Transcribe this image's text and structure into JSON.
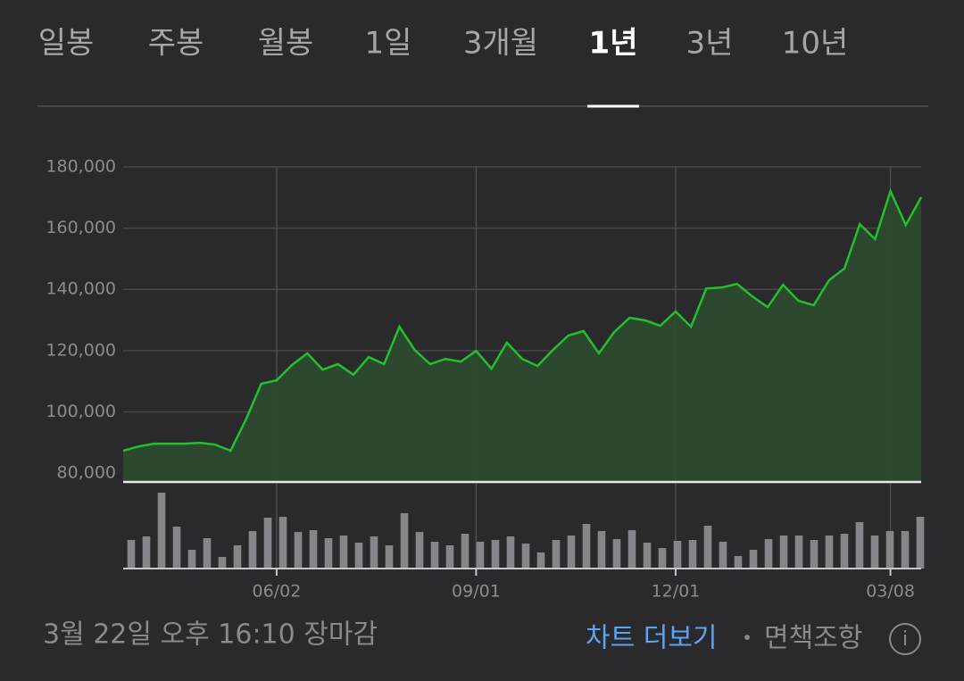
{
  "tabs": [
    "일봉",
    "주봉",
    "월봉",
    "1일",
    "3개월",
    "1년",
    "3년",
    "10년"
  ],
  "active_tab_index": 5,
  "chart_data": [
    {
      "type": "line",
      "color": "#22c02a",
      "area_color": "#2c4a2e",
      "categories": [
        null,
        null,
        null,
        null,
        null,
        null,
        null,
        null,
        null,
        null,
        "06/02",
        null,
        null,
        null,
        null,
        null,
        null,
        null,
        null,
        null,
        null,
        null,
        null,
        "09/01",
        null,
        null,
        null,
        null,
        null,
        null,
        null,
        null,
        null,
        null,
        null,
        null,
        "12/01",
        null,
        null,
        null,
        null,
        null,
        null,
        null,
        null,
        null,
        null,
        null,
        null,
        null,
        "03/08",
        null,
        null
      ],
      "values": [
        87300,
        88700,
        89600,
        89600,
        89600,
        89900,
        89300,
        87300,
        97500,
        109200,
        110300,
        115300,
        119100,
        113800,
        115600,
        112100,
        117900,
        115600,
        127800,
        120200,
        115600,
        117300,
        116400,
        119900,
        114100,
        122600,
        117300,
        115000,
        120200,
        124900,
        126400,
        119100,
        126100,
        130700,
        129900,
        128100,
        132800,
        127800,
        140300,
        140600,
        141800,
        137700,
        134200,
        141500,
        136300,
        134800,
        143000,
        146800,
        161300,
        156400,
        172100,
        161000,
        170100
      ],
      "ylim": [
        77400,
        180000
      ],
      "yticks": [
        {
          "value": 80000,
          "label": "80,000"
        },
        {
          "value": 100000,
          "label": "100,000"
        },
        {
          "value": 120000,
          "label": "120,000"
        },
        {
          "value": 140000,
          "label": "140,000"
        },
        {
          "value": 160000,
          "label": "160,000"
        },
        {
          "value": 180000,
          "label": "180,000"
        }
      ],
      "grid": true
    },
    {
      "type": "bar",
      "color": "#85858c",
      "ylim": [
        0,
        100
      ],
      "values": [
        32,
        36,
        85,
        47,
        21,
        34,
        13,
        26,
        42,
        57,
        58,
        41,
        43,
        34,
        37,
        29,
        36,
        26,
        62,
        41,
        30,
        26,
        39,
        30,
        32,
        36,
        28,
        18,
        32,
        37,
        50,
        42,
        33,
        43,
        29,
        23,
        31,
        32,
        48,
        30,
        14,
        21,
        33,
        37,
        37,
        32,
        37,
        39,
        52,
        37,
        42,
        42,
        58
      ]
    }
  ],
  "footer": {
    "timestamp": "3월 22일 오후 16:10 장마감",
    "more_link": "차트 더보기",
    "separator": "•",
    "disclaimer": "면책조항",
    "info_icon": "i"
  }
}
